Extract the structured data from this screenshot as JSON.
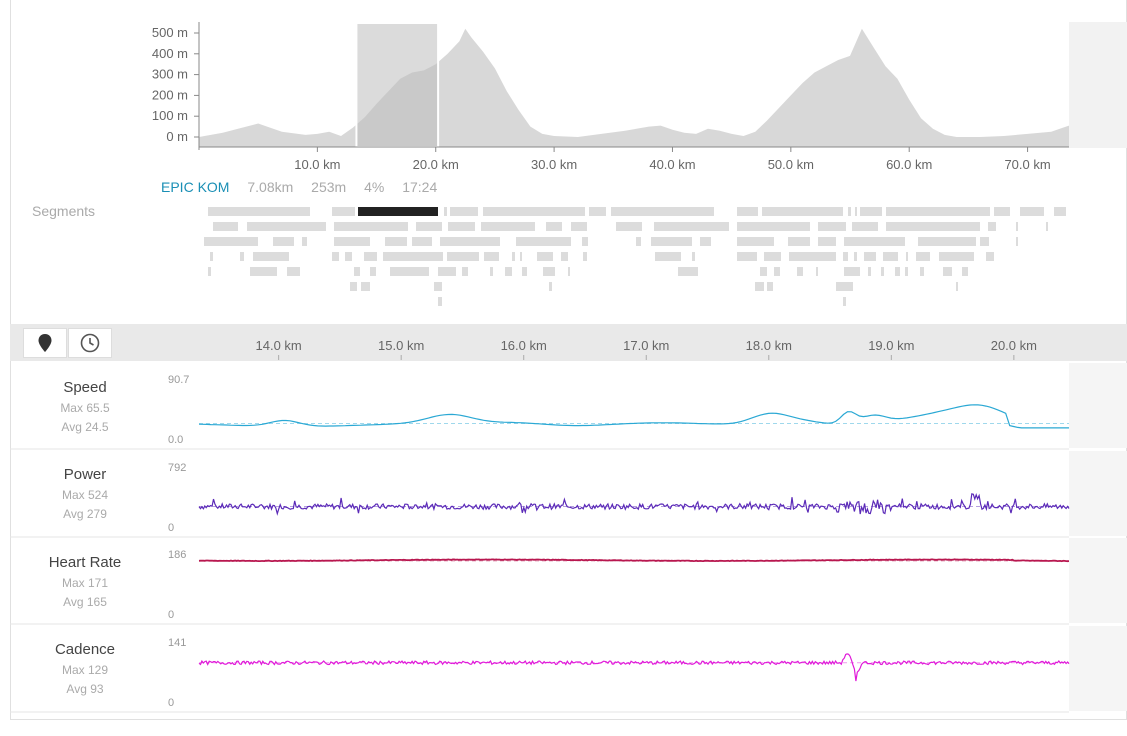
{
  "elevation": {
    "y_ticks": [
      "500 m",
      "400 m",
      "300 m",
      "200 m",
      "100 m",
      "0 m"
    ],
    "x_ticks": [
      "10.0 km",
      "20.0 km",
      "30.0 km",
      "40.0 km",
      "50.0 km",
      "60.0 km",
      "70.0 km"
    ],
    "selection_km": [
      13.3,
      20.2
    ]
  },
  "segment": {
    "name": "EPIC KOM",
    "distance": "7.08km",
    "elevation": "253m",
    "grade": "4%",
    "time": "17:24"
  },
  "segments_label": "Segments",
  "toolbar": {
    "location_icon": "map-pin-icon",
    "time_icon": "clock-icon"
  },
  "detail": {
    "x_ticks": [
      "14.0 km",
      "15.0 km",
      "16.0 km",
      "17.0 km",
      "18.0 km",
      "19.0 km",
      "20.0 km"
    ]
  },
  "metrics": [
    {
      "name": "Speed",
      "max": "Max 65.5",
      "avg": "Avg 24.5",
      "ymax": "90.7",
      "ymin": "0.0",
      "color": "#2aa8d4"
    },
    {
      "name": "Power",
      "max": "Max 524",
      "avg": "Avg 279",
      "ymax": "792",
      "ymin": "0",
      "color": "#5b2ab8"
    },
    {
      "name": "Heart Rate",
      "max": "Max 171",
      "avg": "Avg 165",
      "ymax": "186",
      "ymin": "0",
      "color": "#b8174f"
    },
    {
      "name": "Cadence",
      "max": "Max 129",
      "avg": "Avg 93",
      "ymax": "141",
      "ymin": "0",
      "color": "#e01ad9"
    }
  ],
  "colors": {
    "accent": "#1a8fb5",
    "elevation_fill": "#d8d8d8",
    "selection": "#c0c0c0",
    "selected_segment": "#222222"
  }
}
